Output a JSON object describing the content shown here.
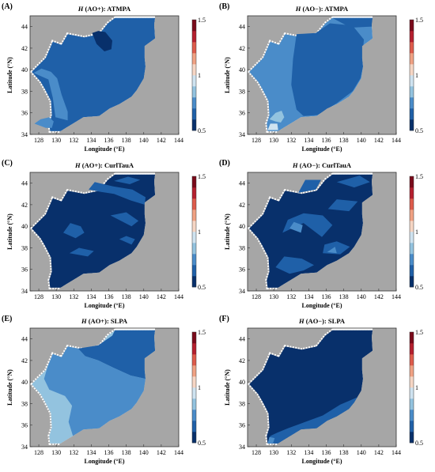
{
  "panels": [
    {
      "id": "A",
      "label": "(A)",
      "title_sym": "H",
      "title_rest": " (AO+): ATMPA",
      "field": "A"
    },
    {
      "id": "B",
      "label": "(B)",
      "title_sym": "H",
      "title_rest": " (AO−): ATMPA",
      "field": "B"
    },
    {
      "id": "C",
      "label": "(C)",
      "title_sym": "H",
      "title_rest": " (AO+): CurlTauA",
      "field": "C"
    },
    {
      "id": "D",
      "label": "(D)",
      "title_sym": "H",
      "title_rest": " (AO−): CurlTauA",
      "field": "D"
    },
    {
      "id": "E",
      "label": "(E)",
      "title_sym": "H",
      "title_rest": " (AO+): SLPA",
      "field": "E"
    },
    {
      "id": "F",
      "label": "(F)",
      "title_sym": "H",
      "title_rest": " (AO−): SLPA",
      "field": "F"
    }
  ],
  "axes": {
    "xlabel": "Longitude (°E)",
    "ylabel": "Latitude (°N)",
    "xticks": [
      "128",
      "130",
      "132",
      "134",
      "136",
      "138",
      "140",
      "142",
      "144"
    ],
    "yticks": [
      "44",
      "42",
      "40",
      "38",
      "36",
      "34"
    ]
  },
  "colorbar": {
    "ticks": [
      "1.5",
      "1",
      "0.5"
    ],
    "colors": [
      "#08306b",
      "#1f60a8",
      "#4a8cc9",
      "#93c3df",
      "#cfe3f0",
      "#f6d6c4",
      "#f0a183",
      "#de5b4b",
      "#b51f2e",
      "#7a0a1a"
    ]
  },
  "style": {
    "land": "#a6a6a6",
    "sea_default": "#ffffff"
  }
}
